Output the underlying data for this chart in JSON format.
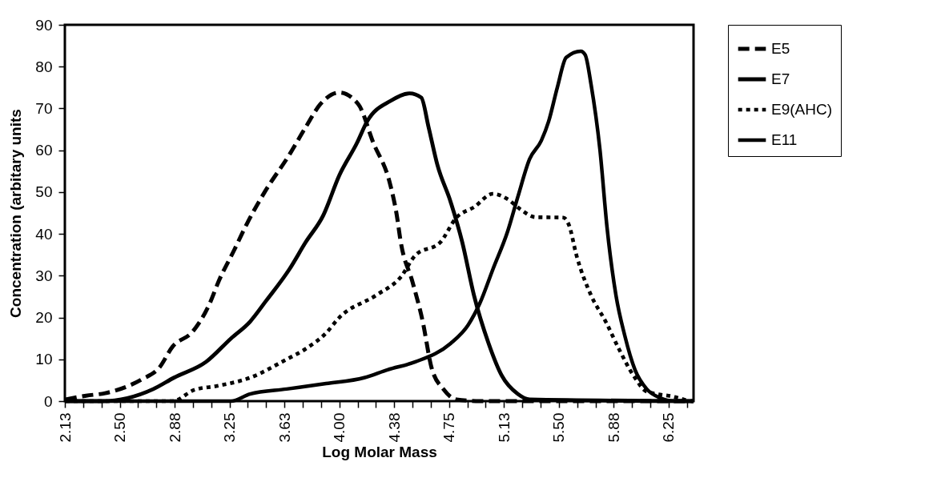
{
  "chart_data": {
    "type": "line",
    "xlabel": "Log Molar Mass",
    "ylabel": "Concentration (arbitary units",
    "xlim": [
      2.125,
      6.42
    ],
    "ylim": [
      0,
      90
    ],
    "yticks": [
      0,
      10,
      20,
      30,
      40,
      50,
      60,
      70,
      80,
      90
    ],
    "xticks": [
      {
        "value": 2.125,
        "label": "2.13"
      },
      {
        "value": 2.25,
        "label": null
      },
      {
        "value": 2.375,
        "label": null
      },
      {
        "value": 2.5,
        "label": "2.50"
      },
      {
        "value": 2.625,
        "label": null
      },
      {
        "value": 2.75,
        "label": null
      },
      {
        "value": 2.875,
        "label": "2.88"
      },
      {
        "value": 3.0,
        "label": null
      },
      {
        "value": 3.125,
        "label": null
      },
      {
        "value": 3.25,
        "label": "3.25"
      },
      {
        "value": 3.375,
        "label": null
      },
      {
        "value": 3.5,
        "label": null
      },
      {
        "value": 3.625,
        "label": "3.63"
      },
      {
        "value": 3.75,
        "label": null
      },
      {
        "value": 3.875,
        "label": null
      },
      {
        "value": 4.0,
        "label": "4.00"
      },
      {
        "value": 4.125,
        "label": null
      },
      {
        "value": 4.25,
        "label": null
      },
      {
        "value": 4.375,
        "label": "4.38"
      },
      {
        "value": 4.5,
        "label": null
      },
      {
        "value": 4.625,
        "label": null
      },
      {
        "value": 4.75,
        "label": "4.75"
      },
      {
        "value": 4.875,
        "label": null
      },
      {
        "value": 5.0,
        "label": null
      },
      {
        "value": 5.125,
        "label": "5.13"
      },
      {
        "value": 5.25,
        "label": null
      },
      {
        "value": 5.375,
        "label": null
      },
      {
        "value": 5.5,
        "label": "5.50"
      },
      {
        "value": 5.625,
        "label": null
      },
      {
        "value": 5.75,
        "label": null
      },
      {
        "value": 5.875,
        "label": "5.88"
      },
      {
        "value": 6.0,
        "label": null
      },
      {
        "value": 6.125,
        "label": null
      },
      {
        "value": 6.25,
        "label": "6.25"
      },
      {
        "value": 6.375,
        "label": null
      }
    ],
    "grid": false,
    "legend": "right",
    "marker": "none",
    "series": [
      {
        "name": "E5",
        "color": "#000000",
        "line_style": "dashed",
        "x": [
          2.13,
          2.27,
          2.4,
          2.65,
          2.77,
          2.86,
          3.0,
          3.11,
          3.18,
          3.28,
          3.37,
          3.49,
          3.66,
          3.77,
          3.87,
          4.0,
          4.13,
          4.23,
          4.35,
          4.39,
          4.42,
          4.5,
          4.57,
          4.63,
          4.71,
          4.8,
          4.96,
          6.42
        ],
        "values": [
          0.4,
          1.3,
          1.9,
          5.2,
          8,
          13,
          16.7,
          23,
          29,
          36,
          42.5,
          50,
          59,
          65.5,
          71,
          73.8,
          71,
          62,
          51.5,
          45,
          38,
          28.5,
          19,
          8,
          2.9,
          0.4,
          0,
          0
        ]
      },
      {
        "name": "E7",
        "color": "#000000",
        "line_style": "solid",
        "x": [
          2.13,
          2.38,
          2.73,
          2.87,
          3.09,
          3.26,
          3.39,
          3.5,
          3.66,
          3.77,
          3.89,
          4.0,
          4.12,
          4.19,
          4.35,
          4.48,
          4.56,
          4.61,
          4.67,
          4.76,
          4.84,
          4.92,
          5.02,
          5.11,
          5.22,
          5.3,
          6.42
        ],
        "values": [
          0,
          0,
          2.9,
          5.6,
          9.4,
          15,
          19,
          24,
          31.6,
          38,
          44.4,
          54,
          61.7,
          66.9,
          71.8,
          73.6,
          72.6,
          65.5,
          56.5,
          47.7,
          38,
          25.3,
          13.8,
          6.1,
          1.7,
          0.4,
          0
        ]
      },
      {
        "name": "E9(AHC)",
        "color": "#000000",
        "line_style": "dotted",
        "x": [
          2.13,
          2.86,
          3.01,
          3.16,
          3.39,
          3.64,
          3.77,
          3.91,
          4.0,
          4.25,
          4.42,
          4.52,
          4.69,
          4.8,
          4.92,
          5.05,
          5.15,
          5.24,
          5.34,
          5.53,
          5.57,
          5.62,
          5.72,
          5.82,
          5.91,
          6.01,
          6.1,
          6.29,
          6.39
        ],
        "values": [
          0,
          0,
          2.7,
          3.6,
          5.6,
          10,
          12.5,
          16.3,
          20,
          25.3,
          29.7,
          34.9,
          38,
          43.9,
          46.4,
          49.6,
          48.3,
          45.8,
          44,
          43.9,
          42,
          34.9,
          25.3,
          19,
          12.5,
          6.1,
          2.3,
          1,
          0
        ]
      },
      {
        "name": "E11",
        "color": "#000000",
        "line_style": "solid",
        "x": [
          2.13,
          3.26,
          3.39,
          3.64,
          3.91,
          4.17,
          4.33,
          4.52,
          4.76,
          4.88,
          4.96,
          5.05,
          5.15,
          5.22,
          5.3,
          5.38,
          5.43,
          5.49,
          5.55,
          5.65,
          5.68,
          5.72,
          5.78,
          5.83,
          5.89,
          5.95,
          6.02,
          6.1,
          6.19,
          6.29,
          6.42
        ],
        "values": [
          0,
          0,
          1.7,
          2.9,
          4.2,
          5.6,
          7.5,
          9.4,
          13.8,
          18.2,
          23.4,
          31.6,
          40.6,
          48.9,
          57.9,
          62.3,
          66.9,
          75.1,
          82.2,
          83.7,
          82.8,
          75.7,
          60.3,
          41.2,
          25.3,
          15.7,
          7.5,
          2.9,
          0.8,
          0,
          0
        ]
      }
    ]
  }
}
